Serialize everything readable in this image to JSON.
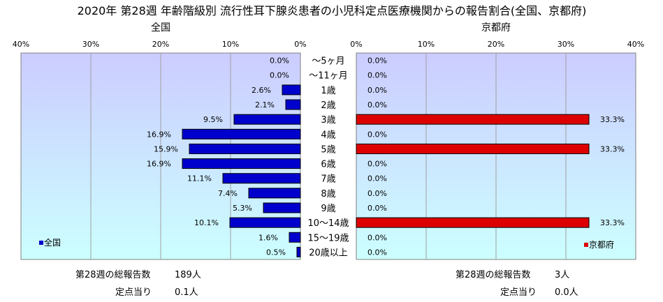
{
  "title": "2020年 第28週 年齢階級別 流行性耳下腺炎患者の小児科定点医療機関からの報告割合(全国、京都府)",
  "colors": {
    "nation_bar": "#0000cc",
    "kyoto_bar": "#dd0000",
    "plot_bg_top": "#ccccff",
    "plot_bg_bottom": "#ccffff"
  },
  "chart_data": [
    {
      "type": "bar",
      "orientation": "horizontal",
      "direction": "right-to-left",
      "title": "全国",
      "legend": "全国",
      "legend_position": "bottom-left",
      "xlim": [
        0,
        40
      ],
      "ticks": [
        "40%",
        "30%",
        "20%",
        "10%",
        "0%"
      ],
      "categories": [
        "～5ヶ月",
        "～11ヶ月",
        "1歳",
        "2歳",
        "3歳",
        "4歳",
        "5歳",
        "6歳",
        "7歳",
        "8歳",
        "9歳",
        "10～14歳",
        "15～19歳",
        "20歳以上"
      ],
      "values": [
        0.0,
        0.0,
        2.6,
        2.1,
        9.5,
        16.9,
        15.9,
        16.9,
        11.1,
        7.4,
        5.3,
        10.1,
        1.6,
        0.5
      ],
      "labels": [
        "0.0%",
        "0.0%",
        "2.6%",
        "2.1%",
        "9.5%",
        "16.9%",
        "15.9%",
        "16.9%",
        "11.1%",
        "7.4%",
        "5.3%",
        "10.1%",
        "1.6%",
        "0.5%"
      ],
      "grid": true
    },
    {
      "type": "bar",
      "orientation": "horizontal",
      "direction": "left-to-right",
      "title": "京都府",
      "legend": "京都府",
      "legend_position": "bottom-right",
      "xlim": [
        0,
        40
      ],
      "ticks": [
        "0%",
        "10%",
        "20%",
        "30%",
        "40%"
      ],
      "categories": [
        "～5ヶ月",
        "～11ヶ月",
        "1歳",
        "2歳",
        "3歳",
        "4歳",
        "5歳",
        "6歳",
        "7歳",
        "8歳",
        "9歳",
        "10～14歳",
        "15～19歳",
        "20歳以上"
      ],
      "values": [
        0.0,
        0.0,
        0.0,
        0.0,
        33.3,
        0.0,
        33.3,
        0.0,
        0.0,
        0.0,
        0.0,
        33.3,
        0.0,
        0.0
      ],
      "labels": [
        "0.0%",
        "0.0%",
        "0.0%",
        "0.0%",
        "33.3%",
        "0.0%",
        "33.3%",
        "0.0%",
        "0.0%",
        "0.0%",
        "0.0%",
        "33.3%",
        "0.0%",
        "0.0%"
      ],
      "grid": true
    }
  ],
  "footer": {
    "left": {
      "total_label": "第28週の総報告数",
      "total_value": "189人",
      "per_label": "定点当り",
      "per_value": "0.1人"
    },
    "right": {
      "total_label": "第28週の総報告数",
      "total_value": "3人",
      "per_label": "定点当り",
      "per_value": "0.0人"
    }
  }
}
